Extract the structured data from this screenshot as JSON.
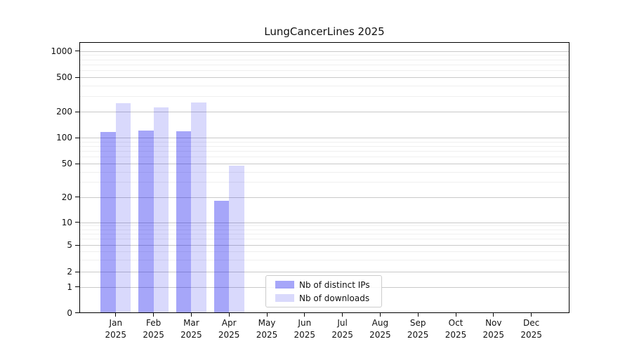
{
  "chart_data": {
    "type": "bar",
    "title": "LungCancerLines 2025",
    "year_label": "2025",
    "categories": [
      "Jan",
      "Feb",
      "Mar",
      "Apr",
      "May",
      "Jun",
      "Jul",
      "Aug",
      "Sep",
      "Oct",
      "Nov",
      "Dec"
    ],
    "series": [
      {
        "name": "Nb of distinct IPs",
        "color": "rgba(0,0,238,0.35)",
        "values": [
          116,
          121,
          119,
          18,
          0,
          0,
          0,
          0,
          0,
          0,
          0,
          0
        ]
      },
      {
        "name": "Nb of downloads",
        "color": "rgba(0,0,238,0.15)",
        "values": [
          250,
          224,
          257,
          47,
          0,
          0,
          0,
          0,
          0,
          0,
          0,
          0
        ]
      }
    ],
    "xlabel": "",
    "ylabel": "",
    "yticks": [
      0,
      1,
      2,
      5,
      10,
      20,
      50,
      100,
      200,
      500,
      1000
    ],
    "scale": "pseudo-log",
    "grid": true,
    "legend_position": "lower-center",
    "colors": {
      "grid_major": "#c9c9c9",
      "grid_minor": "#efefef",
      "axis": "#000000",
      "legend_border": "#cccccc"
    }
  }
}
